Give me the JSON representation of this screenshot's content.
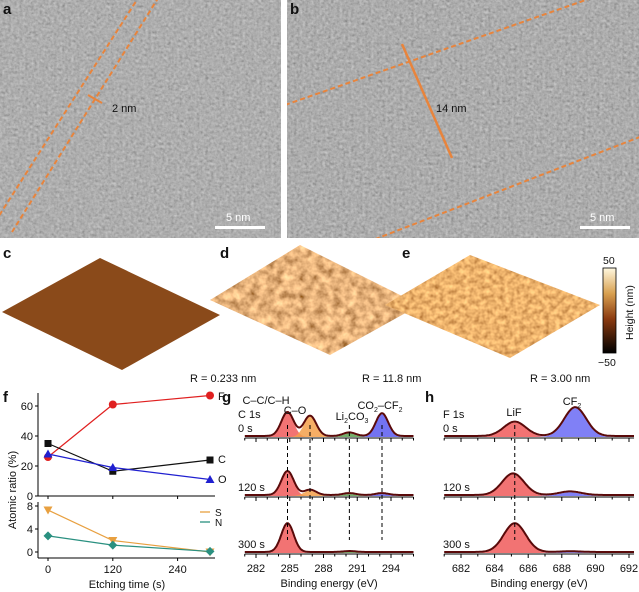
{
  "panels": {
    "a": {
      "letter": "a",
      "thickness_label": "2 nm",
      "scalebar": "5 nm"
    },
    "b": {
      "letter": "b",
      "thickness_label": "14 nm",
      "scalebar": "5 nm"
    },
    "c": {
      "letter": "c",
      "roughness": "R = 0.233 nm"
    },
    "d": {
      "letter": "d",
      "roughness": "R = 11.8 nm"
    },
    "e": {
      "letter": "e",
      "roughness": "R = 3.00 nm"
    },
    "colorbar": {
      "max": "50",
      "min": "−50",
      "label": "Height (nm)"
    },
    "f": {
      "letter": "f"
    },
    "g": {
      "letter": "g"
    },
    "h": {
      "letter": "h"
    }
  },
  "colors": {
    "orange": "#e8843c",
    "afm_brown": "#8a4a1a",
    "red": "#e02020",
    "blue": "#2020d0",
    "black": "#111111",
    "S": "#e8a040",
    "N": "#2a9080"
  },
  "chart_data": [
    {
      "type": "line",
      "panel": "f",
      "xlabel": "Etching time (s)",
      "ylabel": "Atomic ratio (%)",
      "xticks": [
        "0",
        "120",
        "240"
      ],
      "xlim": [
        -10,
        310
      ],
      "upper": {
        "ylim": [
          0,
          70
        ],
        "yticks": [
          "0",
          "20",
          "40",
          "60"
        ],
        "series": [
          {
            "name": "F",
            "x": [
              0,
              120,
              300
            ],
            "values": [
              26,
              61,
              67
            ],
            "color": "#e02020",
            "marker": "circle"
          },
          {
            "name": "C",
            "x": [
              0,
              120,
              300
            ],
            "values": [
              35,
              16.5,
              24
            ],
            "color": "#111111",
            "marker": "square"
          },
          {
            "name": "O",
            "x": [
              0,
              120,
              300
            ],
            "values": [
              28,
              19,
              11
            ],
            "color": "#2020d0",
            "marker": "triangle"
          }
        ]
      },
      "lower": {
        "ylim": [
          -1,
          8.5
        ],
        "yticks": [
          "0",
          "4",
          "8"
        ],
        "series": [
          {
            "name": "S",
            "x": [
              0,
              120,
              300
            ],
            "values": [
              7.3,
              2,
              0
            ],
            "color": "#e8a040",
            "marker": "triangle-down"
          },
          {
            "name": "N",
            "x": [
              0,
              120,
              300
            ],
            "values": [
              2.8,
              1.2,
              0.1
            ],
            "color": "#2a9080",
            "marker": "diamond"
          }
        ]
      }
    },
    {
      "type": "line",
      "panel": "g",
      "title": "C 1s",
      "xlabel": "Binding energy (eV)",
      "xticks": [
        "282",
        "285",
        "288",
        "291",
        "294"
      ],
      "xlim": [
        281,
        296
      ],
      "peak_labels": [
        {
          "parts": [
            "C–C/C–H"
          ]
        },
        {
          "parts": [
            "C–O"
          ]
        },
        {
          "parts": [
            "Li",
            "2",
            "CO",
            "3"
          ]
        },
        {
          "parts": [
            "CO",
            "2",
            "–CF",
            "2"
          ]
        }
      ],
      "reference_lines": [
        284.8,
        286.8,
        290.3,
        293.2
      ],
      "spectra": [
        {
          "label": "0 s",
          "peaks": [
            {
              "center": 284.8,
              "height": 1.0,
              "color": "#f05a5a"
            },
            {
              "center": 286.8,
              "height": 0.85,
              "color": "#f5a04a"
            },
            {
              "center": 290.3,
              "height": 0.15,
              "color": "#5aa050"
            },
            {
              "center": 293.2,
              "height": 0.95,
              "color": "#5a5af0"
            }
          ]
        },
        {
          "label": "120 s",
          "peaks": [
            {
              "center": 284.8,
              "height": 1.0,
              "color": "#f05a5a"
            },
            {
              "center": 286.8,
              "height": 0.22,
              "color": "#f5a04a"
            },
            {
              "center": 290.3,
              "height": 0.08,
              "color": "#5aa050"
            },
            {
              "center": 293.2,
              "height": 0.08,
              "color": "#5a5af0"
            }
          ]
        },
        {
          "label": "300 s",
          "peaks": [
            {
              "center": 284.8,
              "height": 1.2,
              "color": "#f05a5a"
            },
            {
              "center": 290.3,
              "height": 0.04,
              "color": "#5aa050"
            }
          ]
        }
      ]
    },
    {
      "type": "line",
      "panel": "h",
      "title": "F 1s",
      "xlabel": "Binding energy (eV)",
      "xticks": [
        "682",
        "684",
        "686",
        "688",
        "690",
        "692"
      ],
      "xlim": [
        681,
        692.3
      ],
      "peak_labels": [
        {
          "parts": [
            "LiF"
          ]
        },
        {
          "parts": [
            "CF",
            "2"
          ]
        }
      ],
      "reference_lines": [
        685.2
      ],
      "spectra": [
        {
          "label": "0 s",
          "peaks": [
            {
              "center": 685.2,
              "height": 0.6,
              "color": "#f05a5a"
            },
            {
              "center": 688.8,
              "height": 1.2,
              "color": "#6a6af5"
            }
          ]
        },
        {
          "label": "120 s",
          "peaks": [
            {
              "center": 685.1,
              "height": 0.9,
              "color": "#f05a5a"
            },
            {
              "center": 688.5,
              "height": 0.15,
              "color": "#6a6af5"
            }
          ]
        },
        {
          "label": "300 s",
          "peaks": [
            {
              "center": 685.2,
              "height": 1.2,
              "color": "#f05a5a"
            },
            {
              "center": 688.5,
              "height": 0.03,
              "color": "#6a6af5"
            }
          ]
        }
      ]
    }
  ]
}
